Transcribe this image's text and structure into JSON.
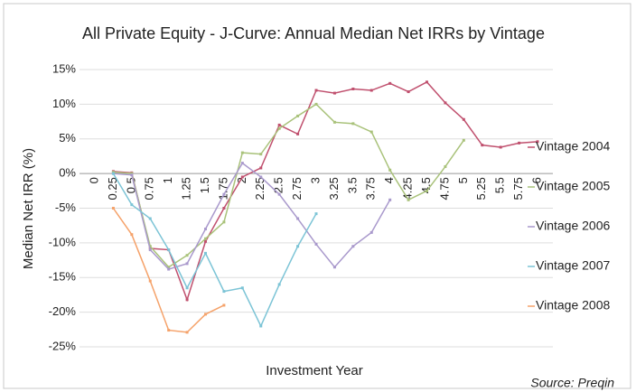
{
  "chart_data": {
    "type": "line",
    "title": "All Private Equity - J-Curve: Annual Median Net IRRs by Vintage",
    "x_label": "Investment Year",
    "y_label": "Median Net IRR (%)",
    "source": "Source: Preqin",
    "categories": [
      "0",
      "0.25",
      "0.5",
      "0.75",
      "1",
      "1.25",
      "1.5",
      "1.75",
      "2",
      "2.25",
      "2.5",
      "2.75",
      "3",
      "3.25",
      "3.5",
      "3.75",
      "4",
      "4.25",
      "4.5",
      "4.75",
      "5",
      "5.25",
      "5.5",
      "5.75",
      "6"
    ],
    "series": [
      {
        "name": "Vintage 2004",
        "color": "#c0506e",
        "values": [
          null,
          0.3,
          0.1,
          -10.8,
          -11,
          -18.2,
          -9.8,
          -5,
          -0.5,
          0.8,
          7,
          5.7,
          12,
          11.6,
          12.2,
          12,
          13,
          11.8,
          13.2,
          10.2,
          7.8,
          4.1,
          3.8,
          4.4,
          4.6
        ]
      },
      {
        "name": "Vintage 2005",
        "color": "#a9c27a",
        "values": [
          null,
          0.2,
          0,
          -10.5,
          -13.5,
          -11.8,
          -9.4,
          -7,
          3,
          2.8,
          6.5,
          8.3,
          10,
          7.4,
          7.2,
          6,
          0.5,
          -3.8,
          -2.5,
          1,
          4.8,
          null,
          null,
          null,
          null
        ]
      },
      {
        "name": "Vintage 2006",
        "color": "#a999cc",
        "values": [
          null,
          0,
          -0.2,
          -11,
          -13.8,
          -13,
          -8,
          -3,
          1.5,
          -0.5,
          -3,
          -6.5,
          -10.2,
          -13.5,
          -10.5,
          -8.5,
          -3.8,
          null,
          null,
          null,
          null,
          null,
          null,
          null,
          null
        ]
      },
      {
        "name": "Vintage 2007",
        "color": "#7cc4d6",
        "values": [
          null,
          0,
          -4.5,
          -6.5,
          -11,
          -16.5,
          -11.5,
          -17,
          -16.5,
          -22,
          -16,
          -10.5,
          -5.8,
          null,
          null,
          null,
          null,
          null,
          null,
          null,
          null,
          null,
          null,
          null,
          null
        ]
      },
      {
        "name": "Vintage 2008",
        "color": "#f5a26a",
        "values": [
          null,
          -5,
          -8.8,
          -15.5,
          -22.6,
          -22.9,
          -20.3,
          -19,
          null,
          null,
          null,
          null,
          null,
          null,
          null,
          null,
          null,
          null,
          null,
          null,
          null,
          null,
          null,
          null,
          null
        ]
      }
    ],
    "ylim": [
      -25,
      15
    ],
    "yticks": [
      {
        "value": -25,
        "label": "-25%"
      },
      {
        "value": -20,
        "label": "-20%"
      },
      {
        "value": -15,
        "label": "-15%"
      },
      {
        "value": -10,
        "label": "-10%"
      },
      {
        "value": -5,
        "label": "-5%"
      },
      {
        "value": 0,
        "label": "0%"
      },
      {
        "value": 5,
        "label": "5%"
      },
      {
        "value": 10,
        "label": "10%"
      },
      {
        "value": 15,
        "label": "15%"
      }
    ],
    "grid": true,
    "legend": "right"
  }
}
